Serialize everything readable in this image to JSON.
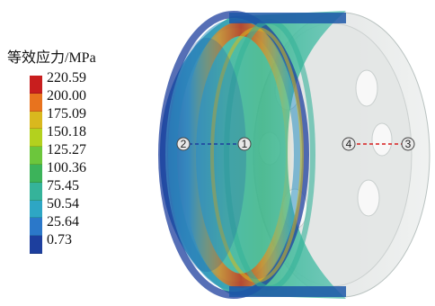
{
  "legend": {
    "title": "等效应力/MPa",
    "levels": [
      {
        "label": "220.59",
        "color": "#c81e1e"
      },
      {
        "label": "200.00",
        "color": "#e8731e"
      },
      {
        "label": "175.09",
        "color": "#d9b81e"
      },
      {
        "label": "150.18",
        "color": "#b3d11e"
      },
      {
        "label": "125.27",
        "color": "#6cc63c"
      },
      {
        "label": "100.36",
        "color": "#3cb35a"
      },
      {
        "label": "75.45",
        "color": "#35b39a"
      },
      {
        "label": "50.54",
        "color": "#2ea6c4"
      },
      {
        "label": "25.64",
        "color": "#2b78c9"
      },
      {
        "label": "0.73",
        "color": "#1d3f9e"
      }
    ]
  },
  "markers": {
    "p1": "1",
    "p2": "2",
    "p3": "3",
    "p4": "4"
  }
}
